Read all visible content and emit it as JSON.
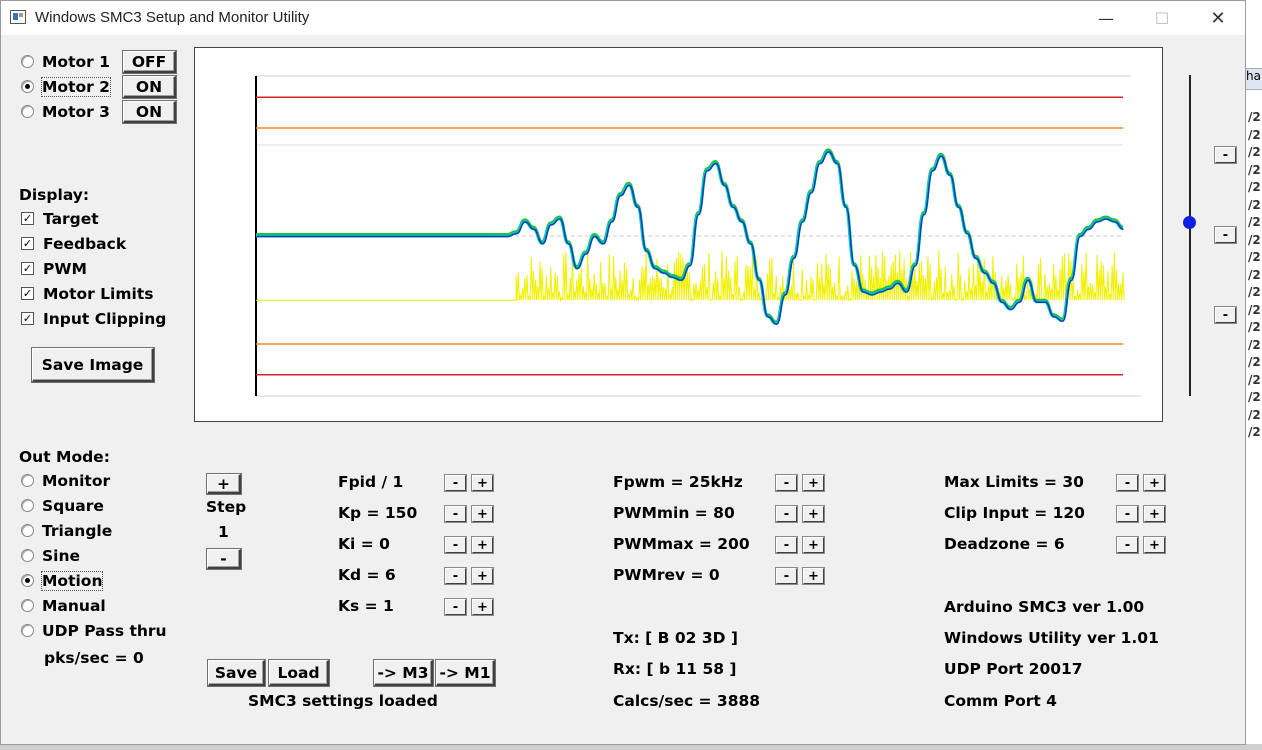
{
  "window": {
    "title": "Windows SMC3 Setup and Monitor Utility"
  },
  "window_controls": {
    "minimize": "—",
    "maximize": "☐",
    "close": "✕"
  },
  "motors": [
    {
      "label": "Motor 1",
      "selected": false,
      "state": "OFF"
    },
    {
      "label": "Motor 2",
      "selected": true,
      "state": "ON"
    },
    {
      "label": "Motor 3",
      "selected": false,
      "state": "ON"
    }
  ],
  "display": {
    "heading": "Display:",
    "options": [
      {
        "label": "Target",
        "checked": true
      },
      {
        "label": "Feedback",
        "checked": true
      },
      {
        "label": "PWM",
        "checked": true
      },
      {
        "label": "Motor Limits",
        "checked": true
      },
      {
        "label": "Input Clipping",
        "checked": true
      }
    ],
    "save_image": "Save Image"
  },
  "out_mode": {
    "heading": "Out Mode:",
    "options": [
      {
        "label": "Monitor",
        "selected": false
      },
      {
        "label": "Square",
        "selected": false
      },
      {
        "label": "Triangle",
        "selected": false
      },
      {
        "label": "Sine",
        "selected": false
      },
      {
        "label": "Motion",
        "selected": true
      },
      {
        "label": "Manual",
        "selected": false
      },
      {
        "label": "UDP Pass thru",
        "selected": false
      }
    ],
    "pks": "pks/sec = 0"
  },
  "step": {
    "plus": "+",
    "label": "Step",
    "value": "1",
    "minus": "-"
  },
  "pid_params": [
    {
      "label": "Fpid / 1"
    },
    {
      "label": "Kp = 150"
    },
    {
      "label": "Ki = 0"
    },
    {
      "label": "Kd = 6"
    },
    {
      "label": "Ks = 1"
    }
  ],
  "pwm_params": [
    {
      "label": "Fpwm = 25kHz"
    },
    {
      "label": "PWMmin = 80"
    },
    {
      "label": "PWMmax = 200"
    },
    {
      "label": "PWMrev = 0"
    }
  ],
  "limit_params": [
    {
      "label": "Max Limits = 30"
    },
    {
      "label": "Clip Input = 120"
    },
    {
      "label": "Deadzone = 6"
    }
  ],
  "adjust": {
    "minus": "-",
    "plus": "+"
  },
  "buttons": {
    "save": "Save",
    "load": "Load",
    "to_m3": "-> M3",
    "to_m1": "-> M1"
  },
  "status": {
    "settings": "SMC3 settings loaded"
  },
  "comms": {
    "tx": "Tx: [ B 02 3D ]",
    "rx": "Rx: [ b 11 58 ]",
    "calcs": "Calcs/sec = 3888"
  },
  "info": {
    "arduino": "Arduino SMC3 ver 1.00",
    "windows": "Windows Utility ver 1.01",
    "udp": "UDP Port 20017",
    "comm": "Comm Port 4"
  },
  "side_buttons": [
    "-",
    "-",
    "-"
  ],
  "background_window": {
    "header": "ha",
    "cells": [
      "/2",
      "/2",
      "/2",
      "/2",
      "/2",
      "/2",
      "/2",
      "/2",
      "/2",
      "/2",
      "/2",
      "/2",
      "/2",
      "/2",
      "/2",
      "/2",
      "/2",
      "/2",
      "/2"
    ]
  },
  "colors": {
    "limit_outer": "#e02020",
    "limit_inner": "#f08a20",
    "target": "#20c020",
    "feedback": "#1040b0",
    "pwm": "#f0f000",
    "slider": "#1020e0"
  },
  "chart_data": {
    "type": "line",
    "title": "",
    "xlabel": "",
    "ylabel": "",
    "grid": false,
    "baseline_y": 0,
    "ylim": [
      -1,
      1
    ],
    "limits": {
      "outer": [
        0.95,
        -0.95
      ],
      "inner": [
        0.74,
        -0.74
      ]
    },
    "series": [
      {
        "key": "feedback",
        "x": [
          0,
          0.29,
          0.3,
          0.31,
          0.32,
          0.33,
          0.34,
          0.35,
          0.36,
          0.37,
          0.38,
          0.39,
          0.4,
          0.41,
          0.42,
          0.43,
          0.44,
          0.45,
          0.46,
          0.47,
          0.48,
          0.49,
          0.5,
          0.51,
          0.52,
          0.53,
          0.54,
          0.55,
          0.56,
          0.57,
          0.58,
          0.59,
          0.6,
          0.61,
          0.62,
          0.63,
          0.64,
          0.65,
          0.66,
          0.67,
          0.68,
          0.69,
          0.7,
          0.71,
          0.72,
          0.73,
          0.74,
          0.75,
          0.76,
          0.77,
          0.78,
          0.79,
          0.8,
          0.81,
          0.82,
          0.83,
          0.84,
          0.85,
          0.86,
          0.87,
          0.88,
          0.89,
          0.9,
          0.91,
          0.92,
          0.93,
          0.94,
          0.95,
          0.96,
          0.97,
          0.98,
          0.99,
          1.0
        ],
        "y": [
          0,
          0,
          0.02,
          0.1,
          0.05,
          -0.05,
          0.08,
          0.12,
          -0.05,
          -0.22,
          -0.12,
          0.0,
          -0.05,
          0.1,
          0.28,
          0.35,
          0.2,
          -0.1,
          -0.22,
          -0.25,
          -0.28,
          -0.3,
          -0.2,
          0.15,
          0.45,
          0.5,
          0.35,
          0.2,
          0.1,
          -0.05,
          -0.3,
          -0.55,
          -0.6,
          -0.4,
          -0.15,
          0.1,
          0.3,
          0.5,
          0.58,
          0.5,
          0.2,
          -0.2,
          -0.38,
          -0.4,
          -0.38,
          -0.36,
          -0.32,
          -0.38,
          -0.2,
          0.15,
          0.45,
          0.55,
          0.42,
          0.2,
          0.02,
          -0.15,
          -0.25,
          -0.32,
          -0.45,
          -0.5,
          -0.45,
          -0.3,
          -0.45,
          -0.45,
          -0.55,
          -0.58,
          -0.3,
          0.0,
          0.05,
          0.1,
          0.12,
          0.1,
          0.05
        ]
      },
      {
        "key": "pwm",
        "x": [
          0,
          0.3,
          1.0
        ],
        "y": [
          -0.44,
          -0.44,
          -0.44
        ],
        "noise_band": [
          0.3,
          1.0
        ],
        "noise_height": 0.34
      }
    ]
  }
}
